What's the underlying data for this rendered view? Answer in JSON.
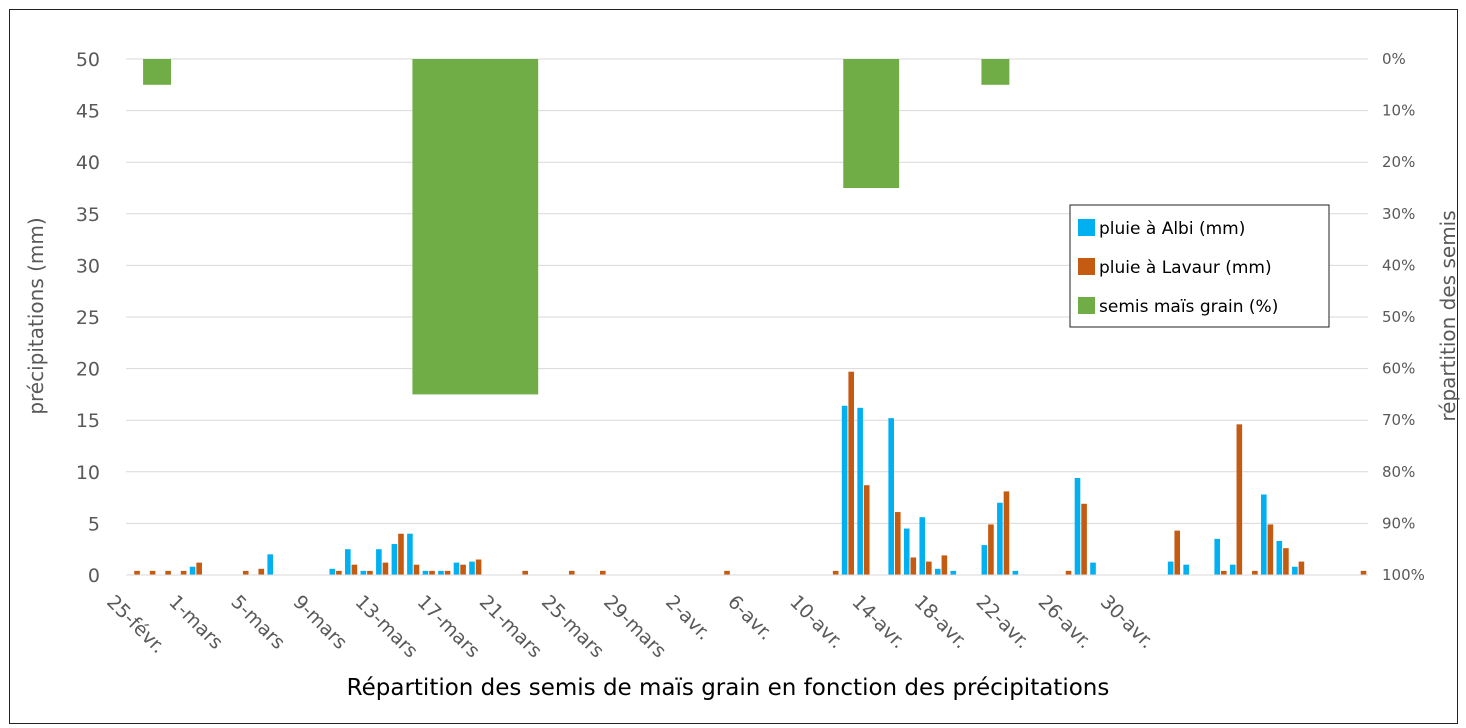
{
  "chart_data": {
    "type": "bar",
    "title": "Répartition des semis de maïs grain en fonction des précipitations",
    "ylabel": "précipitations (mm)",
    "y2label": "répartition des semis",
    "ylim": [
      0,
      50
    ],
    "y2lim": [
      "0%",
      "100%"
    ],
    "y_ticks": [
      "0",
      "5",
      "10",
      "15",
      "20",
      "25",
      "30",
      "35",
      "40",
      "45",
      "50"
    ],
    "y2_ticks": [
      "0%",
      "10%",
      "20%",
      "30%",
      "40%",
      "50%",
      "60%",
      "70%",
      "80%",
      "90%",
      "100%"
    ],
    "x_ticks": [
      "25-févr.",
      "1-mars",
      "5-mars",
      "9-mars",
      "13-mars",
      "17-mars",
      "21-mars",
      "25-mars",
      "29-mars",
      "2-avr.",
      "6-avr.",
      "10-avr.",
      "14-avr.",
      "18-avr.",
      "22-avr.",
      "26-avr.",
      "30-avr."
    ],
    "legend_position": "right",
    "grid": true,
    "colors": {
      "albi": "#00b0f0",
      "lavaur": "#c55a11",
      "semis": "#70ad47"
    },
    "series": [
      {
        "name": "pluie à Albi (mm)",
        "axis": "left",
        "values": [
          0,
          0,
          0,
          0,
          0.8,
          0,
          0,
          0,
          0,
          2.0,
          0,
          0,
          0,
          0.6,
          2.5,
          0.4,
          2.5,
          3.0,
          4.0,
          0.4,
          0.4,
          1.2,
          1.3,
          0,
          0,
          0,
          0,
          0,
          0,
          0,
          0,
          0,
          0,
          0,
          0,
          0,
          0,
          0,
          0,
          0,
          0,
          0,
          0,
          0,
          0,
          0,
          16.4,
          16.2,
          0,
          15.2,
          4.5,
          5.6,
          0.6,
          0.4,
          0,
          2.9,
          7.0,
          0.4,
          0,
          0,
          0,
          9.4,
          1.2,
          0,
          0,
          0,
          0,
          1.3,
          1.0,
          0,
          3.5,
          1.0,
          0,
          7.8,
          3.3,
          0.8,
          0,
          0,
          0,
          0
        ]
      },
      {
        "name": "pluie à Lavaur (mm)",
        "axis": "left",
        "values": [
          0.4,
          0.4,
          0.4,
          0.4,
          1.2,
          0,
          0,
          0.4,
          0.6,
          0,
          0,
          0,
          0,
          0.4,
          1.0,
          0.4,
          1.2,
          4.0,
          1.0,
          0.4,
          0.4,
          1.0,
          1.5,
          0,
          0,
          0.4,
          0,
          0,
          0.4,
          0,
          0.4,
          0,
          0,
          0,
          0,
          0,
          0,
          0,
          0.4,
          0,
          0,
          0,
          0,
          0,
          0,
          0.4,
          19.7,
          8.7,
          0,
          6.1,
          1.7,
          1.3,
          1.9,
          0,
          0,
          4.9,
          8.1,
          0,
          0,
          0,
          0.4,
          6.9,
          0,
          0,
          0,
          0,
          0,
          4.3,
          0,
          0,
          0.4,
          14.6,
          0.4,
          4.9,
          2.6,
          1.3,
          0,
          0,
          0,
          0.4
        ]
      },
      {
        "name": "semis maïs grain (%)",
        "axis": "right",
        "type": "weekly bars",
        "x": [
          "1-mars",
          "13-mars au 29-mars",
          "10-avr. au 14-avr.",
          "22-avr."
        ],
        "values": [
          5,
          65,
          25,
          5
        ]
      }
    ]
  }
}
